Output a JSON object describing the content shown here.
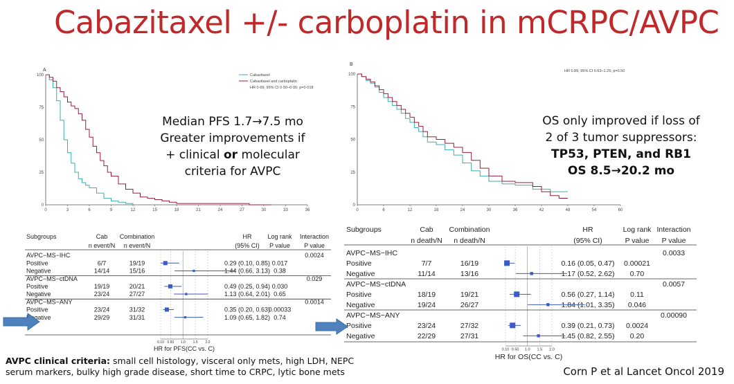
{
  "slide": {
    "title": "Cabazitaxel +/- carboplatin in mCRPC/AVPC",
    "citation": "Corn P et al Lancet Oncol 2019",
    "accent_color": "#c0282a",
    "arrow_color": "#4f81bd"
  },
  "km_pfs": {
    "panel": "A",
    "legend": [
      "Cabazitaxel",
      "Cabazitaxel and carboplatin"
    ],
    "hr_text": "HR 0·69, 95% CI 0·50–0·95; p=0·018",
    "y_ticks": [
      "100",
      "75",
      "50",
      "25",
      "0"
    ],
    "x_ticks": [
      "0",
      "3",
      "6",
      "9",
      "12",
      "15",
      "18",
      "21",
      "24",
      "27",
      "30",
      "33",
      "36"
    ],
    "callout": {
      "line1": "Median PFS 1.7→7.5 mo",
      "line2": "Greater improvements if",
      "line3_pre": "+ clinical ",
      "line3_bold": "or",
      "line3_post": " molecular",
      "line4": "criteria for AVPC"
    }
  },
  "km_os": {
    "panel": "B",
    "hr_text": "HR 0.89, 95% CI 0.63–1.25; p=0.50",
    "y_ticks": [
      "100",
      "75",
      "50",
      "25",
      "0"
    ],
    "x_ticks": [
      "0",
      "6",
      "12",
      "18",
      "24",
      "30",
      "36",
      "42",
      "48",
      "54",
      "60"
    ],
    "callout": {
      "line1": "OS only improved if loss of",
      "line2": "2 of 3 tumor suppressors:",
      "line3": "TP53, PTEN, and RB1",
      "line4": "OS 8.5→20.2 mo"
    }
  },
  "chart_data": [
    {
      "type": "line",
      "title": "",
      "xlabel": "",
      "ylabel": "",
      "xlim": [
        0,
        36
      ],
      "ylim": [
        0,
        100
      ],
      "series": [
        {
          "name": "Cabazitaxel",
          "color": "#3aaeb0",
          "x": [
            0,
            0.5,
            1,
            1.5,
            2,
            2.5,
            3,
            3.5,
            4,
            4.5,
            5,
            5.5,
            6,
            7,
            8,
            9,
            10,
            11,
            12
          ],
          "y": [
            100,
            96,
            90,
            80,
            65,
            50,
            40,
            32,
            25,
            20,
            17,
            15,
            13,
            9,
            5,
            3,
            2,
            1,
            0
          ]
        },
        {
          "name": "Cabazitaxel and carboplatin",
          "color": "#9b1b3a",
          "x": [
            0,
            0.5,
            1,
            1.5,
            2,
            2.5,
            3,
            3.5,
            4,
            4.5,
            5,
            5.5,
            6,
            6.5,
            7,
            7.5,
            8,
            8.5,
            9,
            10,
            11,
            12,
            13,
            14,
            15,
            16,
            17,
            18,
            20,
            24,
            28,
            31
          ],
          "y": [
            100,
            98,
            95,
            90,
            87,
            83,
            79,
            76,
            74,
            70,
            65,
            58,
            52,
            45,
            40,
            34,
            30,
            25,
            22,
            16,
            12,
            9,
            6,
            5,
            4,
            3,
            2,
            1,
            1,
            1,
            0,
            0
          ]
        }
      ]
    },
    {
      "type": "line",
      "title": "",
      "xlabel": "",
      "ylabel": "",
      "xlim": [
        0,
        60
      ],
      "ylim": [
        0,
        100
      ],
      "series": [
        {
          "name": "Cabazitaxel",
          "color": "#3aaeb0",
          "x": [
            0,
            1,
            2,
            3,
            4,
            5,
            6,
            7,
            8,
            9,
            10,
            11,
            12,
            13,
            14,
            15,
            16,
            18,
            20,
            22,
            24,
            26,
            28,
            30,
            33,
            36,
            40,
            44,
            48
          ],
          "y": [
            100,
            98,
            95,
            93,
            90,
            86,
            82,
            79,
            76,
            73,
            70,
            66,
            63,
            59,
            56,
            52,
            48,
            46,
            42,
            38,
            32,
            26,
            22,
            18,
            16,
            15,
            12,
            10,
            10
          ]
        },
        {
          "name": "Cabazitaxel and carboplatin",
          "color": "#9b1b3a",
          "x": [
            0,
            1,
            2,
            3,
            4,
            5,
            6,
            7,
            8,
            9,
            10,
            11,
            12,
            13,
            14,
            15,
            16,
            18,
            20,
            22,
            24,
            26,
            28,
            30,
            33,
            36,
            40,
            42,
            44,
            46,
            48
          ],
          "y": [
            100,
            98,
            96,
            94,
            91,
            88,
            85,
            82,
            79,
            76,
            73,
            70,
            67,
            63,
            60,
            56,
            52,
            50,
            47,
            44,
            40,
            34,
            28,
            22,
            18,
            17,
            14,
            10,
            7,
            5,
            5
          ]
        }
      ]
    },
    {
      "type": "table",
      "title": "",
      "xlabel": "HR for PFS(CC vs. C)",
      "x_ticks": [
        "0.10",
        "0.50",
        "1.0",
        "1.5",
        "2.0"
      ],
      "columns": [
        "Subgroups",
        "Cab\nn event/N",
        "Combination\nn event/N",
        "HR\n(95% CI)",
        "Log rank\nP value",
        "Interaction\nP value"
      ],
      "groups": [
        {
          "name": "AVPC−MS−IHC",
          "interaction": "0.0024",
          "rows": [
            {
              "label": "Positive",
              "cab": "6/7",
              "comb": "19/19",
              "hr": "0.29 (0.10, 0.85)",
              "p": "0.017",
              "est": 0.29,
              "lo": 0.1,
              "hi": 0.85
            },
            {
              "label": "Negative",
              "cab": "14/14",
              "comb": "15/16",
              "hr": "1.44 (0.66, 3.13)",
              "p": "0.38",
              "est": 1.44,
              "lo": 0.66,
              "hi": 3.13
            }
          ]
        },
        {
          "name": "AVPC−MS−ctDNA",
          "interaction": "0.029",
          "rows": [
            {
              "label": "Positive",
              "cab": "19/19",
              "comb": "20/21",
              "hr": "0.49 (0.25, 0.94)",
              "p": "0.030",
              "est": 0.49,
              "lo": 0.25,
              "hi": 0.94
            },
            {
              "label": "Negative",
              "cab": "23/24",
              "comb": "27/27",
              "hr": "1.13 (0.64, 2.01)",
              "p": "0.65",
              "est": 1.13,
              "lo": 0.64,
              "hi": 2.01
            }
          ]
        },
        {
          "name": "AVPC−MS−ANY",
          "interaction": "0.0014",
          "rows": [
            {
              "label": "Positive",
              "cab": "23/24",
              "comb": "31/32",
              "hr": "0.35 (0.20, 0.63)",
              "p": "0.00033",
              "est": 0.35,
              "lo": 0.2,
              "hi": 0.63
            },
            {
              "label": "Negative",
              "cab": "29/29",
              "comb": "31/31",
              "hr": "1.09 (0.65, 1.82)",
              "p": "0.74",
              "est": 1.09,
              "lo": 0.65,
              "hi": 1.82
            }
          ]
        }
      ]
    },
    {
      "type": "table",
      "title": "",
      "xlabel": "HR for OS(CC vs. C)",
      "x_ticks": [
        "0.10",
        "0.50",
        "1.0",
        "1.5",
        "2.0"
      ],
      "columns": [
        "Subgroups",
        "Cab\nn death/N",
        "Combination\nn death/N",
        "HR\n(95% CI)",
        "Log rank\nP value",
        "Interaction\nP value"
      ],
      "groups": [
        {
          "name": "AVPC−MS−IHC",
          "interaction": "0.0033",
          "rows": [
            {
              "label": "Positive",
              "cab": "7/7",
              "comb": "16/19",
              "hr": "0.16 (0.05, 0.47)",
              "p": "0.00021",
              "est": 0.16,
              "lo": 0.05,
              "hi": 0.47
            },
            {
              "label": "Negative",
              "cab": "11/14",
              "comb": "13/16",
              "hr": "1.17 (0.52, 2.62)",
              "p": "0.70",
              "est": 1.17,
              "lo": 0.52,
              "hi": 2.62
            }
          ]
        },
        {
          "name": "AVPC−MS−ctDNA",
          "interaction": "0.0057",
          "rows": [
            {
              "label": "Positive",
              "cab": "18/19",
              "comb": "19/21",
              "hr": "0.56 (0.27, 1.14)",
              "p": "0.11",
              "est": 0.56,
              "lo": 0.27,
              "hi": 1.14
            },
            {
              "label": "Negative",
              "cab": "19/24",
              "comb": "26/27",
              "hr": "1.84 (1.01, 3.35)",
              "p": "0.046",
              "est": 1.84,
              "lo": 1.01,
              "hi": 3.35
            }
          ]
        },
        {
          "name": "AVPC−MS−ANY",
          "interaction": "0.00090",
          "rows": [
            {
              "label": "Positive",
              "cab": "23/24",
              "comb": "27/32",
              "hr": "0.39 (0.21, 0.73)",
              "p": "0.0024",
              "est": 0.39,
              "lo": 0.21,
              "hi": 0.73
            },
            {
              "label": "Negative",
              "cab": "22/29",
              "comb": "27/31",
              "hr": "1.45 (0.82, 2.55)",
              "p": "0.20",
              "est": 1.45,
              "lo": 0.82,
              "hi": 2.55
            }
          ]
        }
      ]
    }
  ],
  "criteria": {
    "bold": "AVPC clinical criteria:",
    "text": " small cell histology, visceral only mets, high LDH, NEPC serum markers, bulky high grade disease, short time to CRPC, lytic bone mets"
  }
}
